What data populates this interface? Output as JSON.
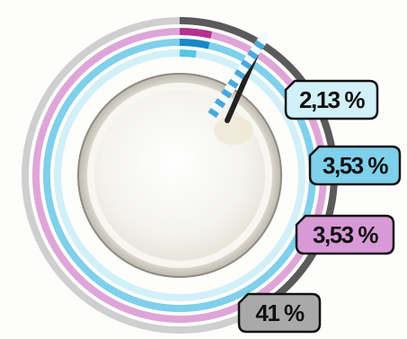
{
  "chart_data": {
    "type": "radial-bar",
    "title": "",
    "series": [
      {
        "label": "41 %",
        "value": 41,
        "color": "#5a5a5a",
        "track": "#cfcfcf",
        "badge": "#a9a9a9"
      },
      {
        "label": "3,53 %",
        "value": 3.53,
        "color": "#b4318f",
        "track": "#dea6d8",
        "badge": "#d89ad6"
      },
      {
        "label": "3,53 %",
        "value": 3.53,
        "color": "#1a88c8",
        "track": "#7fd0ea",
        "badge": "#7fd0ea"
      },
      {
        "label": "2,13 %",
        "value": 2.13,
        "color": "#56c6e6",
        "track": "#d2f0f8",
        "badge": "#d2f0f8"
      }
    ],
    "max": 100
  }
}
